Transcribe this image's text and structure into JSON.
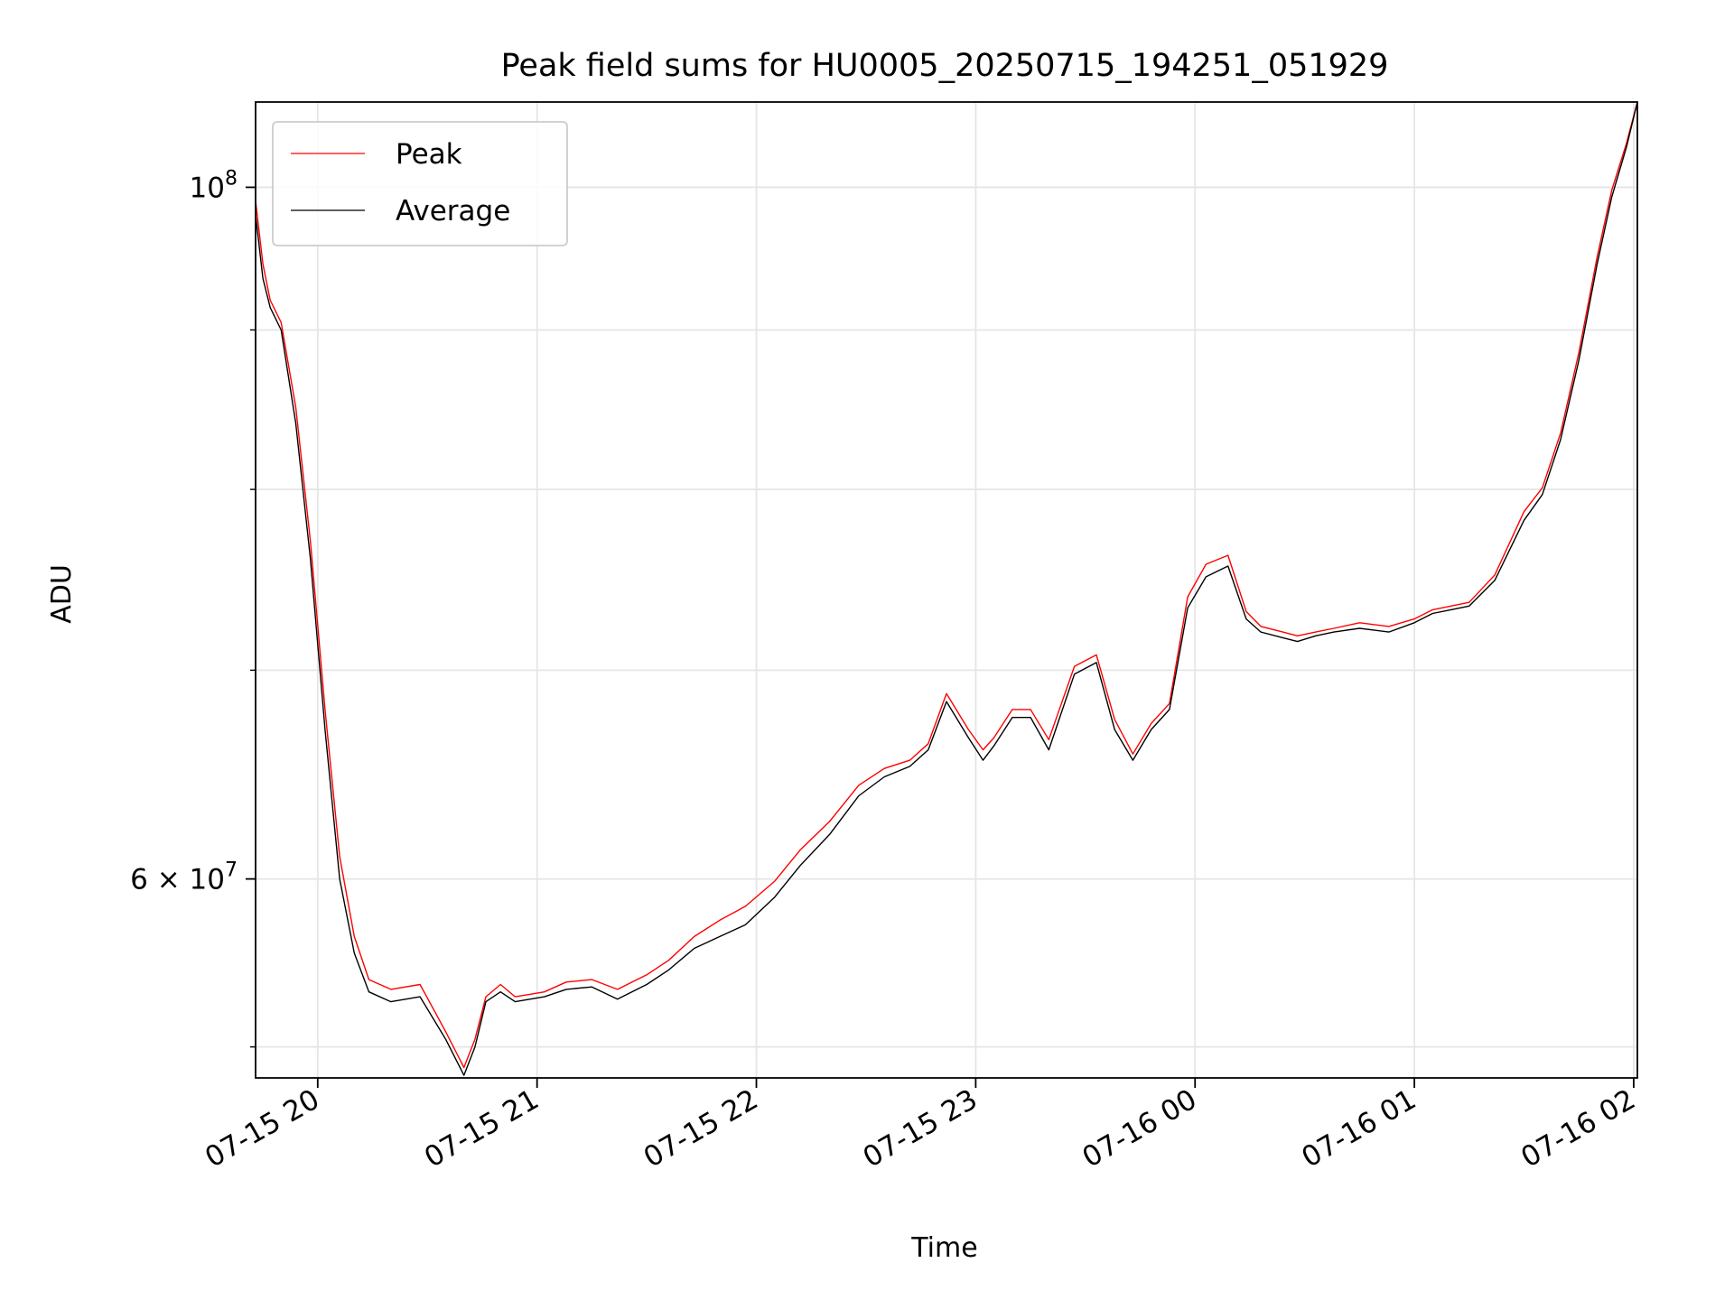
{
  "chart_data": {
    "type": "line",
    "title": "Peak field sums for HU0005_20250715_194251_051929",
    "xlabel": "Time",
    "ylabel": "ADU",
    "y_scale": "log",
    "grid": true,
    "legend_position": "top-left",
    "xlim": [
      "2025-07-15 19:43",
      "2025-07-16 02:01"
    ],
    "ylim": [
      51800000,
      106500000
    ],
    "x_ticks": [
      {
        "value": "2025-07-15 20:00",
        "label": "07-15 20"
      },
      {
        "value": "2025-07-15 21:00",
        "label": "07-15 21"
      },
      {
        "value": "2025-07-15 22:00",
        "label": "07-15 22"
      },
      {
        "value": "2025-07-15 23:00",
        "label": "07-15 23"
      },
      {
        "value": "2025-07-16 00:00",
        "label": "07-16 00"
      },
      {
        "value": "2025-07-16 01:00",
        "label": "07-16 01"
      },
      {
        "value": "2025-07-16 02:00",
        "label": "07-16 02"
      }
    ],
    "y_major_ticks": [
      {
        "value": 100000000,
        "base": "10",
        "exp": "8"
      },
      {
        "value": 60000000,
        "base": "6 × 10",
        "exp": "7"
      }
    ],
    "y_minor_ticks": [
      53000000,
      70000000,
      80000000,
      90000000
    ],
    "series": [
      {
        "name": "Peak",
        "color": "#ff0000",
        "x": [
          "2025-07-15 19:43",
          "2025-07-15 19:45",
          "2025-07-15 19:47",
          "2025-07-15 19:50",
          "2025-07-15 19:54",
          "2025-07-15 19:58",
          "2025-07-15 20:02",
          "2025-07-15 20:06",
          "2025-07-15 20:10",
          "2025-07-15 20:14",
          "2025-07-15 20:20",
          "2025-07-15 20:28",
          "2025-07-15 20:35",
          "2025-07-15 20:40",
          "2025-07-15 20:43",
          "2025-07-15 20:46",
          "2025-07-15 20:50",
          "2025-07-15 20:54",
          "2025-07-15 20:58",
          "2025-07-15 21:02",
          "2025-07-15 21:08",
          "2025-07-15 21:15",
          "2025-07-15 21:22",
          "2025-07-15 21:30",
          "2025-07-15 21:36",
          "2025-07-15 21:43",
          "2025-07-15 21:50",
          "2025-07-15 21:57",
          "2025-07-15 22:05",
          "2025-07-15 22:12",
          "2025-07-15 22:20",
          "2025-07-15 22:28",
          "2025-07-15 22:35",
          "2025-07-15 22:42",
          "2025-07-15 22:47",
          "2025-07-15 22:52",
          "2025-07-15 22:58",
          "2025-07-15 23:02",
          "2025-07-15 23:05",
          "2025-07-15 23:10",
          "2025-07-15 23:15",
          "2025-07-15 23:20",
          "2025-07-15 23:27",
          "2025-07-15 23:33",
          "2025-07-15 23:38",
          "2025-07-15 23:43",
          "2025-07-15 23:48",
          "2025-07-15 23:53",
          "2025-07-15 23:58",
          "2025-07-16 00:03",
          "2025-07-16 00:09",
          "2025-07-16 00:14",
          "2025-07-16 00:18",
          "2025-07-16 00:24",
          "2025-07-16 00:28",
          "2025-07-16 00:33",
          "2025-07-16 00:38",
          "2025-07-16 00:45",
          "2025-07-16 00:53",
          "2025-07-16 01:00",
          "2025-07-16 01:05",
          "2025-07-16 01:10",
          "2025-07-16 01:15",
          "2025-07-16 01:22",
          "2025-07-16 01:30",
          "2025-07-16 01:35",
          "2025-07-16 01:40",
          "2025-07-16 01:45",
          "2025-07-16 01:50",
          "2025-07-16 01:54",
          "2025-07-16 01:58",
          "2025-07-16 02:01"
        ],
        "values": [
          99000000,
          94500000,
          92000000,
          90500000,
          85000000,
          77000000,
          68000000,
          61000000,
          57500000,
          55700000,
          55300000,
          55500000,
          53600000,
          52200000,
          53300000,
          55000000,
          55500000,
          55000000,
          55100000,
          55200000,
          55600000,
          55700000,
          55300000,
          55900000,
          56500000,
          57500000,
          58200000,
          58800000,
          59900000,
          61300000,
          62600000,
          64300000,
          65100000,
          65500000,
          66300000,
          68800000,
          67000000,
          66000000,
          66600000,
          68000000,
          68000000,
          66500000,
          70200000,
          70800000,
          67500000,
          65800000,
          67300000,
          68300000,
          73900000,
          75700000,
          76200000,
          73100000,
          72300000,
          72000000,
          71800000,
          72000000,
          72200000,
          72500000,
          72300000,
          72700000,
          73200000,
          73400000,
          73600000,
          75100000,
          78700000,
          80100000,
          83400000,
          88500000,
          95000000,
          99800000,
          103300000,
          106500000
        ]
      },
      {
        "name": "Average",
        "color": "#000000",
        "x": [
          "2025-07-15 19:43",
          "2025-07-15 19:45",
          "2025-07-15 19:47",
          "2025-07-15 19:50",
          "2025-07-15 19:54",
          "2025-07-15 19:58",
          "2025-07-15 20:02",
          "2025-07-15 20:06",
          "2025-07-15 20:10",
          "2025-07-15 20:14",
          "2025-07-15 20:20",
          "2025-07-15 20:28",
          "2025-07-15 20:35",
          "2025-07-15 20:40",
          "2025-07-15 20:43",
          "2025-07-15 20:46",
          "2025-07-15 20:50",
          "2025-07-15 20:54",
          "2025-07-15 20:58",
          "2025-07-15 21:02",
          "2025-07-15 21:08",
          "2025-07-15 21:15",
          "2025-07-15 21:22",
          "2025-07-15 21:30",
          "2025-07-15 21:36",
          "2025-07-15 21:43",
          "2025-07-15 21:50",
          "2025-07-15 21:57",
          "2025-07-15 22:05",
          "2025-07-15 22:12",
          "2025-07-15 22:20",
          "2025-07-15 22:28",
          "2025-07-15 22:35",
          "2025-07-15 22:42",
          "2025-07-15 22:47",
          "2025-07-15 22:52",
          "2025-07-15 22:58",
          "2025-07-15 23:02",
          "2025-07-15 23:05",
          "2025-07-15 23:10",
          "2025-07-15 23:15",
          "2025-07-15 23:20",
          "2025-07-15 23:27",
          "2025-07-15 23:33",
          "2025-07-15 23:38",
          "2025-07-15 23:43",
          "2025-07-15 23:48",
          "2025-07-15 23:53",
          "2025-07-15 23:58",
          "2025-07-16 00:03",
          "2025-07-16 00:09",
          "2025-07-16 00:14",
          "2025-07-16 00:18",
          "2025-07-16 00:24",
          "2025-07-16 00:28",
          "2025-07-16 00:33",
          "2025-07-16 00:38",
          "2025-07-16 00:45",
          "2025-07-16 00:53",
          "2025-07-16 01:00",
          "2025-07-16 01:05",
          "2025-07-16 01:10",
          "2025-07-16 01:15",
          "2025-07-16 01:22",
          "2025-07-16 01:30",
          "2025-07-16 01:35",
          "2025-07-16 01:40",
          "2025-07-16 01:45",
          "2025-07-16 01:50",
          "2025-07-16 01:54",
          "2025-07-16 01:58",
          "2025-07-16 02:01"
        ],
        "values": [
          98000000,
          93500000,
          91500000,
          90000000,
          84000000,
          76000000,
          67000000,
          60000000,
          56800000,
          55200000,
          54800000,
          55000000,
          53300000,
          51900000,
          53000000,
          54800000,
          55200000,
          54800000,
          54900000,
          55000000,
          55300000,
          55400000,
          54900000,
          55500000,
          56100000,
          57000000,
          57500000,
          58000000,
          59200000,
          60600000,
          62000000,
          63800000,
          64700000,
          65200000,
          66000000,
          68400000,
          66600000,
          65500000,
          66200000,
          67600000,
          67600000,
          66000000,
          69800000,
          70400000,
          67000000,
          65500000,
          67000000,
          68000000,
          73300000,
          75000000,
          75600000,
          72700000,
          72000000,
          71700000,
          71500000,
          71800000,
          72000000,
          72200000,
          72000000,
          72500000,
          73000000,
          73200000,
          73400000,
          74800000,
          78200000,
          79700000,
          83000000,
          88000000,
          94500000,
          99300000,
          103000000,
          106500000
        ]
      }
    ]
  }
}
